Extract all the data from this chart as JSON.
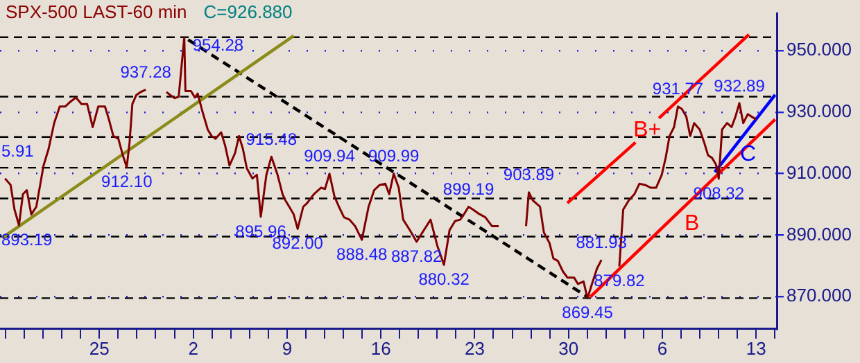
{
  "chart_data": {
    "type": "line",
    "title": "SPX-500 LAST-60 min",
    "subtitle": "C=926.880",
    "xlim": [
      "--04-17T14:00",
      "--06-14T13:00"
    ],
    "xticks": [
      {
        "value": "--04-18",
        "label": null
      },
      {
        "value": "--04-19T09:36",
        "label": null
      },
      {
        "value": "--04-20T19:12",
        "label": null
      },
      {
        "value": "--04-22T04:48",
        "label": null
      },
      {
        "value": "--04-23T14:24",
        "label": null
      },
      {
        "value": "--04-25",
        "label": "25"
      },
      {
        "value": "--04-26T09:36",
        "label": null
      },
      {
        "value": "--04-27T19:12",
        "label": null
      },
      {
        "value": "--04-29T04:48",
        "label": null
      },
      {
        "value": "--04-30T14:24",
        "label": null
      },
      {
        "value": "--05-02",
        "label": "2"
      },
      {
        "value": "--05-03T09:36",
        "label": null
      },
      {
        "value": "--05-04T19:12",
        "label": null
      },
      {
        "value": "--05-06T04:48",
        "label": null
      },
      {
        "value": "--05-07T14:24",
        "label": null
      },
      {
        "value": "--05-09",
        "label": "9"
      },
      {
        "value": "--05-10T09:36",
        "label": null
      },
      {
        "value": "--05-11T19:12",
        "label": null
      },
      {
        "value": "--05-13T04:48",
        "label": null
      },
      {
        "value": "--05-14T14:24",
        "label": null
      },
      {
        "value": "--05-16",
        "label": "16"
      },
      {
        "value": "--05-17T09:36",
        "label": null
      },
      {
        "value": "--05-18T19:12",
        "label": null
      },
      {
        "value": "--05-20T04:48",
        "label": null
      },
      {
        "value": "--05-21T14:24",
        "label": null
      },
      {
        "value": "--05-23",
        "label": "23"
      },
      {
        "value": "--05-24T09:36",
        "label": null
      },
      {
        "value": "--05-25T19:12",
        "label": null
      },
      {
        "value": "--05-27T04:48",
        "label": null
      },
      {
        "value": "--05-28T14:24",
        "label": null
      },
      {
        "value": "--05-30",
        "label": "30"
      },
      {
        "value": "--05-31T09:36",
        "label": null
      },
      {
        "value": "--06-01T19:12",
        "label": null
      },
      {
        "value": "--06-03T04:48",
        "label": null
      },
      {
        "value": "--06-04T14:24",
        "label": null
      },
      {
        "value": "--06-06",
        "label": "6"
      },
      {
        "value": "--06-07T09:36",
        "label": null
      },
      {
        "value": "--06-08T19:12",
        "label": null
      },
      {
        "value": "--06-10T04:48",
        "label": null
      },
      {
        "value": "--06-11T14:24",
        "label": null
      },
      {
        "value": "--06-13",
        "label": "13"
      },
      {
        "value": "--06-14T09:36",
        "label": null
      }
    ],
    "ylim": [
      859.5,
      962
    ],
    "yticks": [
      {
        "value": 870,
        "label": "870.000"
      },
      {
        "value": 890,
        "label": "890.000"
      },
      {
        "value": 910,
        "label": "910.000"
      },
      {
        "value": 930,
        "label": "930.000"
      },
      {
        "value": 950,
        "label": "950.000"
      }
    ],
    "grid": "y",
    "legend": false,
    "marker": "none",
    "ref_lines": [
      {
        "axis": "y",
        "value": 954.3,
        "color": "#000000",
        "line_style": "dashed"
      },
      {
        "axis": "y",
        "value": 935.0,
        "color": "#000000",
        "line_style": "dashed"
      },
      {
        "axis": "y",
        "value": 921.9,
        "color": "#000000",
        "line_style": "dashed"
      },
      {
        "axis": "y",
        "value": 911.9,
        "color": "#000000",
        "line_style": "dashed"
      },
      {
        "axis": "y",
        "value": 901.9,
        "color": "#000000",
        "line_style": "dashed"
      },
      {
        "axis": "y",
        "value": 889.5,
        "color": "#000000",
        "line_style": "dashed"
      },
      {
        "axis": "y",
        "value": 869.5,
        "color": "#000000",
        "line_style": "dashed"
      }
    ],
    "annotations": [
      {
        "text": "893.19",
        "x": "--04-19T00:00",
        "y": 893.19
      },
      "5.91",
      {
        "text": "937.28",
        "x": "--04-28T11:00",
        "y": 937.28
      },
      {
        "text": "912.10",
        "x": "--04-27T01:00",
        "y": 912.1
      },
      {
        "text": "954.28",
        "x": "--05-01T08:00",
        "y": 954.28
      },
      {
        "text": "915.48",
        "x": "--05-07T20:00",
        "y": 915.48
      },
      {
        "text": "895.96",
        "x": "--05-07T01:00",
        "y": 895.96
      },
      {
        "text": "892.00",
        "x": "--05-09T19:00",
        "y": 892.0
      },
      {
        "text": "909.94",
        "x": "--05-12T04:00",
        "y": 909.94
      },
      {
        "text": "888.48",
        "x": "--05-14T14:00",
        "y": 888.48
      },
      {
        "text": "909.99",
        "x": "--05-16T23:00",
        "y": 909.99
      },
      {
        "text": "887.82",
        "x": "--05-18T16:00",
        "y": 887.82
      },
      {
        "text": "899.19",
        "x": "--05-22T13:00",
        "y": 899.19
      },
      {
        "text": "880.32",
        "x": "--05-20T17:00",
        "y": 880.32
      },
      {
        "text": "903.89",
        "x": "--05-27T01:00",
        "y": 903.89
      },
      {
        "text": "881.93",
        "x": "--06-01T11:00",
        "y": 881.93
      },
      {
        "text": "869.45",
        "x": "--05-31T10:00",
        "y": 869.45
      },
      {
        "text": "879.82",
        "x": "--06-02T19:00",
        "y": 879.82
      },
      {
        "text": "931.77",
        "x": "--06-07T04:00",
        "y": 931.77
      },
      {
        "text": "908.32",
        "x": "--06-10T05:00",
        "y": 908.32
      },
      {
        "text": "932.89",
        "x": "--06-11T18:00",
        "y": 932.89
      }
    ],
    "series": [
      {
        "color": "#800000",
        "x": [
          "--04-17T23:00",
          "--04-18T09:00",
          "--04-18T16:00",
          "--04-19T00:00",
          "--04-19T07:00",
          "--04-19T14:00",
          "--04-19T22:00",
          "--04-20T07:00",
          "--04-20T20:00",
          "--04-21T05:00",
          "--04-21T15:00",
          "--04-22T01:00",
          "--04-22T11:00",
          "--04-22T21:00",
          "--04-23T06:00",
          "--04-23T16:00",
          "--04-24T02:00",
          "--04-24T12:00",
          "--04-24T22:00",
          "--04-25T10:00",
          "--04-25T17:00",
          "--04-26T01:00",
          "--04-26T10:00",
          "--04-26T18:00",
          "--04-27T01:00",
          "--04-27T06:00",
          "--04-27T11:00",
          "--04-27T18:00",
          "--04-28T02:00",
          "--04-28T11:00",
          "--04-28T22:00",
          "--04-30T00:00",
          "--04-30T07:00",
          "--04-30T15:00",
          "--04-30T22:00",
          "--05-01T08:00",
          "--05-01T10:00",
          "--05-01T20:00",
          "--05-02T03:00",
          "--05-02T08:00",
          "--05-02T16:00",
          "--05-03T02:00",
          "--05-03T09:00",
          "--05-03T16:00",
          "--05-04T02:00",
          "--05-04T09:00",
          "--05-04T17:00",
          "--05-05T03:00",
          "--05-05T10:00",
          "--05-05T17:00",
          "--05-06T00:00",
          "--05-06T10:00",
          "--05-06T18:00",
          "--05-07T01:00",
          "--05-07T11:00",
          "--05-07T20:00",
          "--05-08T07:00",
          "--05-08T16:00",
          "--05-08T21:00",
          "--05-09T04:00",
          "--05-09T12:00",
          "--05-09T19:00",
          "--05-10T05:00",
          "--05-10T12:00",
          "--05-11T00:00",
          "--05-11T13:00",
          "--05-11T20:00",
          "--05-12T04:00",
          "--05-12T13:00",
          "--05-12T21:00",
          "--05-13T06:00",
          "--05-13T16:00",
          "--05-14T02:00",
          "--05-14T14:00",
          "--05-15T02:00",
          "--05-15T12:00",
          "--05-15T22:00",
          "--05-16T08:00",
          "--05-16T15:00",
          "--05-16T23:00",
          "--05-17T08:00",
          "--05-17T16:00",
          "--05-18T04:00",
          "--05-18T16:00",
          "--05-19T05:00",
          "--05-19T17:00",
          "--05-20T05:00",
          "--05-20T17:00",
          "--05-21T03:00",
          "--05-21T13:00",
          "--05-21T22:00",
          "--05-22T06:00",
          "--05-22T13:00",
          "--05-22T21:00",
          "--05-23T06:00",
          "--05-23T19:00",
          "--05-24T07:00",
          "--05-24T19:00",
          "--05-25T12:00",
          "--05-26T20:00",
          "--05-27T01:00",
          "--05-27T08:00",
          "--05-27T21:00",
          "--05-28T04:00",
          "--05-28T14:00",
          "--05-28T21:00",
          "--05-29T05:00",
          "--05-29T14:00",
          "--05-29T22:00",
          "--05-30T10:00",
          "--05-30T17:00",
          "--05-31T03:00",
          "--05-31T10:00",
          "--05-31T18:00",
          "--06-01T03:00",
          "--06-01T11:00",
          "--06-02T02:00",
          "--06-02T19:00",
          "--06-03T02:00",
          "--06-03T12:00",
          "--06-03T22:00",
          "--06-04T07:00",
          "--06-04T17:00",
          "--06-05T03:00",
          "--06-05T13:00",
          "--06-05T23:00",
          "--06-06T06:00",
          "--06-06T13:00",
          "--06-06T21:00",
          "--06-07T04:00",
          "--06-07T11:00",
          "--06-07T19:00",
          "--06-08T02:00",
          "--06-08T09:00",
          "--06-08T19:00",
          "--06-09T03:00",
          "--06-09T10:00",
          "--06-09T17:00",
          "--06-10T00:00",
          "--06-10T05:00",
          "--06-10T11:00",
          "--06-10T20:00",
          "--06-11T04:00",
          "--06-11T11:00",
          "--06-11T18:00",
          "--06-12T01:00",
          "--06-12T09:00",
          "--06-12T16:00",
          "--06-13T00:00"
        ],
        "values": [
          908.4,
          906.3,
          898.3,
          893.19,
          903.3,
          904.6,
          896.7,
          899.2,
          912.6,
          918.0,
          926.4,
          931.8,
          931.8,
          933.5,
          934.7,
          932.6,
          932.6,
          925.1,
          931.8,
          931.8,
          927.6,
          922.2,
          921.3,
          915.9,
          912.1,
          920.1,
          932.6,
          935.5,
          936.5,
          937.28,
          null,
          936.5,
          935.5,
          934.5,
          935.0,
          954.28,
          936.8,
          936.8,
          934.7,
          936.0,
          930.5,
          924.3,
          922.2,
          921.3,
          923.4,
          919.2,
          912.6,
          916.7,
          922.2,
          918.0,
          911.7,
          908.4,
          909.6,
          895.96,
          909.6,
          915.48,
          909.6,
          903.3,
          901.3,
          899.2,
          896.7,
          892.0,
          899.2,
          900.4,
          903.3,
          905.4,
          905.0,
          909.94,
          902.5,
          899.2,
          895.8,
          895.0,
          892.9,
          888.48,
          899.2,
          904.6,
          906.3,
          906.7,
          903.3,
          909.99,
          905.4,
          895.0,
          891.6,
          887.82,
          891.6,
          895.0,
          886.6,
          880.32,
          891.6,
          894.6,
          895.0,
          897.1,
          899.19,
          898.3,
          897.1,
          895.8,
          892.9,
          892.9,
          null,
          892.9,
          903.89,
          901.3,
          899.2,
          890.8,
          887.4,
          882.4,
          881.6,
          878.2,
          876.2,
          876.2,
          874.1,
          874.9,
          869.45,
          874.1,
          879.1,
          881.93,
          null,
          879.82,
          898.3,
          901.3,
          903.3,
          906.7,
          906.3,
          905.4,
          905.4,
          909.6,
          915.1,
          922.2,
          925.1,
          931.77,
          931.0,
          928.5,
          922.2,
          926.4,
          924.3,
          920.1,
          915.9,
          915.1,
          913.0,
          908.32,
          924.3,
          926.4,
          925.1,
          928.5,
          932.89,
          926.4,
          929.3,
          928.5,
          927.6
        ]
      },
      {
        "color": "#8b8b1a",
        "x": [
          "--04-17T18:00",
          "--05-09T12:00"
        ],
        "values": [
          889.1,
          954.8
        ]
      },
      {
        "color": "#000000",
        "line_style": "dashed",
        "x": [
          "--05-01T15:00",
          "--05-31T10:00"
        ],
        "values": [
          953.5,
          869.9
        ]
      },
      {
        "name": "B+",
        "color": "#ff0000",
        "x": [
          "--05-29T22:00",
          "--06-04T00:00",
          "--06-04T21:00",
          "--06-05T18:00",
          "--06-12T11:00"
        ],
        "values": [
          900.4,
          920.1,
          null,
          928.0,
          955.2
        ]
      },
      {
        "name": "B",
        "color": "#ff0000",
        "x": [
          "--05-31T15:00",
          "--06-14T10:00"
        ],
        "values": [
          869.9,
          927.6
        ]
      },
      {
        "name": "C",
        "color": "#0000ff",
        "x": [
          "--06-09T22:00",
          "--06-14T10:00"
        ],
        "values": [
          910.5,
          935.6
        ]
      }
    ]
  }
}
